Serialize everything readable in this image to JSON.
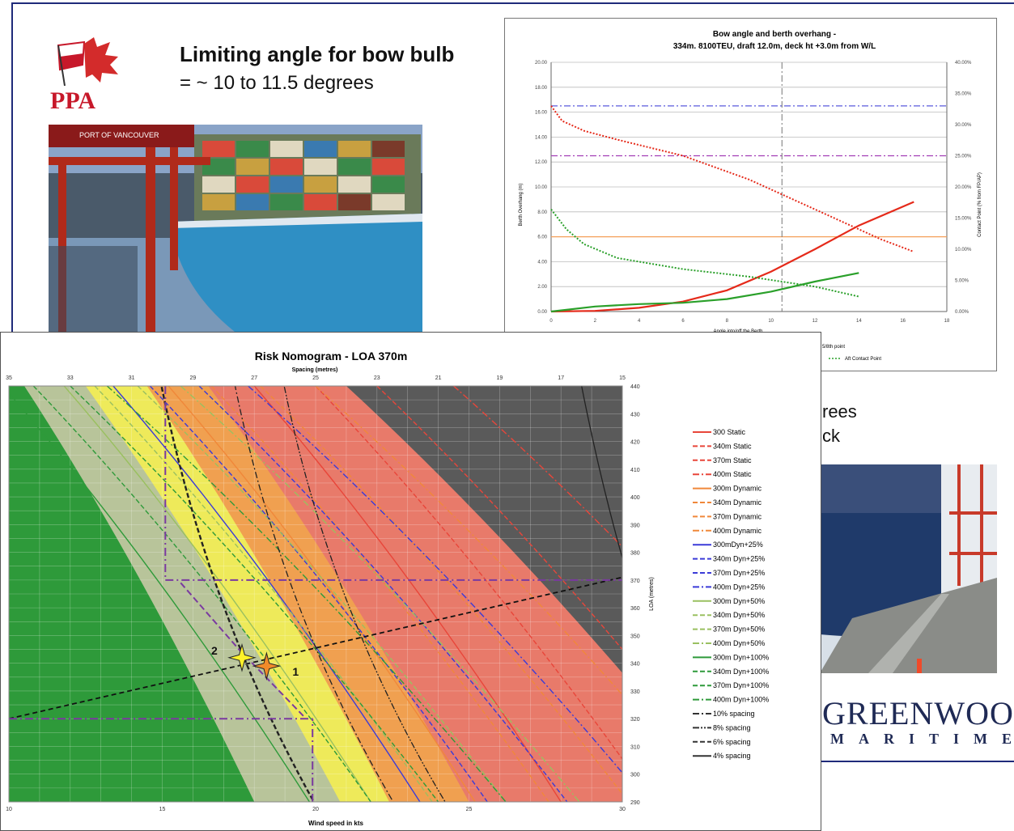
{
  "slide": {
    "headline": "Limiting angle for bow bulb",
    "subhead": "= ~ 10 to 11.5 degrees",
    "logo_text": "PPA",
    "photo1_sign": "PORT OF VANCOUVER",
    "partial_text_line1": "rees",
    "partial_text_line2": "ck",
    "brand_name": "GREENWOOD",
    "brand_sub": "MARITIME"
  },
  "chart_data": [
    {
      "type": "line",
      "title": "Bow angle and berth overhang -",
      "subtitle": "334m. 8100TEU, draft 12.0m, deck ht +3.0m from W/L",
      "xlabel": "Angle into/off the Berth",
      "ylabel": "Berth Overhang (m)",
      "y2label": "Contact Point (% from FP/AP)",
      "xlim": [
        0,
        18
      ],
      "ylim": [
        0,
        20
      ],
      "y2lim": [
        0,
        40
      ],
      "x_ticks": [
        "0",
        "2",
        "4",
        "6",
        "8",
        "10",
        "12",
        "14",
        "16",
        "18"
      ],
      "y_ticks": [
        "0.00",
        "2.00",
        "4.00",
        "6.00",
        "8.00",
        "10.00",
        "12.00",
        "14.00",
        "16.00",
        "18.00",
        "20.00"
      ],
      "y2_ticks": [
        "0.00%",
        "5.00%",
        "10.00%",
        "15.00%",
        "20.00%",
        "25.00%",
        "30.00%",
        "35.00%",
        "40.00%"
      ],
      "legend": [
        "5/8th point",
        "Aft Contact Point"
      ],
      "vline_x": 10.5,
      "hlines": [
        {
          "y": 16.5,
          "color": "#5a5adc",
          "style": "dashdot"
        },
        {
          "y": 12.5,
          "color": "#a23fb5",
          "style": "dashdot"
        },
        {
          "y": 6.0,
          "color": "#f5a05a",
          "style": "solid"
        }
      ],
      "series": [
        {
          "color": "#e52a1a",
          "style": "solid",
          "x": [
            0,
            2,
            4,
            6,
            8,
            10,
            12,
            14,
            16.5
          ],
          "y": [
            0,
            0.05,
            0.3,
            0.8,
            1.7,
            3.2,
            5.0,
            6.9,
            8.8
          ]
        },
        {
          "color": "#2aa02a",
          "style": "solid",
          "x": [
            0,
            2,
            4,
            6,
            8,
            10,
            12,
            14
          ],
          "y": [
            0,
            0.4,
            0.6,
            0.7,
            1.0,
            1.6,
            2.4,
            3.1
          ]
        },
        {
          "color": "#e52a1a",
          "style": "dotted",
          "x": [
            0,
            0.5,
            1.5,
            3,
            6,
            9,
            12,
            15,
            16.5
          ],
          "y": [
            16.5,
            15.3,
            14.5,
            13.8,
            12.5,
            10.6,
            8.2,
            5.8,
            4.8
          ]
        },
        {
          "color": "#2aa02a",
          "style": "dotted",
          "x": [
            0,
            0.7,
            1.5,
            3,
            6,
            9,
            12,
            14
          ],
          "y": [
            8.2,
            6.6,
            5.4,
            4.3,
            3.4,
            2.8,
            2.0,
            1.2
          ]
        }
      ]
    },
    {
      "type": "line",
      "title": "Risk Nomogram -  LOA 370m",
      "top_axis_label": "Spacing (metres)",
      "xlabel": "Wind speed in kts",
      "ylabel": "LOA (metres)",
      "xlim": [
        10,
        30
      ],
      "ylim": [
        290,
        440
      ],
      "top_ticks": [
        "35",
        "33",
        "31",
        "29",
        "27",
        "25",
        "23",
        "21",
        "19",
        "17",
        "15"
      ],
      "x_ticks": [
        "10",
        "15",
        "20",
        "25",
        "30"
      ],
      "right_ticks": [
        "290",
        "300",
        "310",
        "320",
        "330",
        "340",
        "350",
        "360",
        "370",
        "380",
        "390",
        "400",
        "410",
        "420",
        "430",
        "440"
      ],
      "markers": [
        {
          "label": "1",
          "x": 18.4,
          "y": 339
        },
        {
          "label": "2",
          "x": 17.6,
          "y": 342
        }
      ],
      "legend": [
        {
          "name": "300 Static",
          "color": "#e8463a",
          "style": "solid"
        },
        {
          "name": "340m Static",
          "color": "#e8463a",
          "style": "dashed"
        },
        {
          "name": "370m Static",
          "color": "#e8463a",
          "style": "dashed"
        },
        {
          "name": "400m Static",
          "color": "#e8463a",
          "style": "dashdot"
        },
        {
          "name": "300m Dynamic",
          "color": "#f0883a",
          "style": "solid"
        },
        {
          "name": "340m Dynamic",
          "color": "#f0883a",
          "style": "dashed"
        },
        {
          "name": "370m Dynamic",
          "color": "#f0883a",
          "style": "dashed"
        },
        {
          "name": "400m Dynamic",
          "color": "#f0883a",
          "style": "dashdot"
        },
        {
          "name": "300mDyn+25%",
          "color": "#3b3bd8",
          "style": "solid"
        },
        {
          "name": "340m Dyn+25%",
          "color": "#3b3bd8",
          "style": "dashed"
        },
        {
          "name": "370m Dyn+25%",
          "color": "#3b3bd8",
          "style": "dashed"
        },
        {
          "name": "400m Dyn+25%",
          "color": "#3b3bd8",
          "style": "dashdot"
        },
        {
          "name": "300m Dyn+50%",
          "color": "#9ac060",
          "style": "solid"
        },
        {
          "name": "340m Dyn+50%",
          "color": "#9ac060",
          "style": "dashed"
        },
        {
          "name": "370m Dyn+50%",
          "color": "#9ac060",
          "style": "dashed"
        },
        {
          "name": "400m Dyn+50%",
          "color": "#9ac060",
          "style": "dashdot"
        },
        {
          "name": "300m Dyn+100%",
          "color": "#2e9a3a",
          "style": "solid"
        },
        {
          "name": "340m Dyn+100%",
          "color": "#2e9a3a",
          "style": "dashed"
        },
        {
          "name": "370m Dyn+100%",
          "color": "#2e9a3a",
          "style": "dashed"
        },
        {
          "name": "400m Dyn+100%",
          "color": "#2e9a3a",
          "style": "dashdot"
        },
        {
          "name": "10% spacing",
          "color": "#333333",
          "style": "dashdot"
        },
        {
          "name": "8% spacing",
          "color": "#333333",
          "style": "dashdotdot"
        },
        {
          "name": "6% spacing",
          "color": "#333333",
          "style": "dashed"
        },
        {
          "name": "4% spacing",
          "color": "#333333",
          "style": "solid"
        }
      ],
      "zones": [
        "#2e9a3a",
        "#b8c49a",
        "#eeea5a",
        "#f0a050",
        "#e87a6a",
        "#5a5a5a"
      ]
    }
  ]
}
